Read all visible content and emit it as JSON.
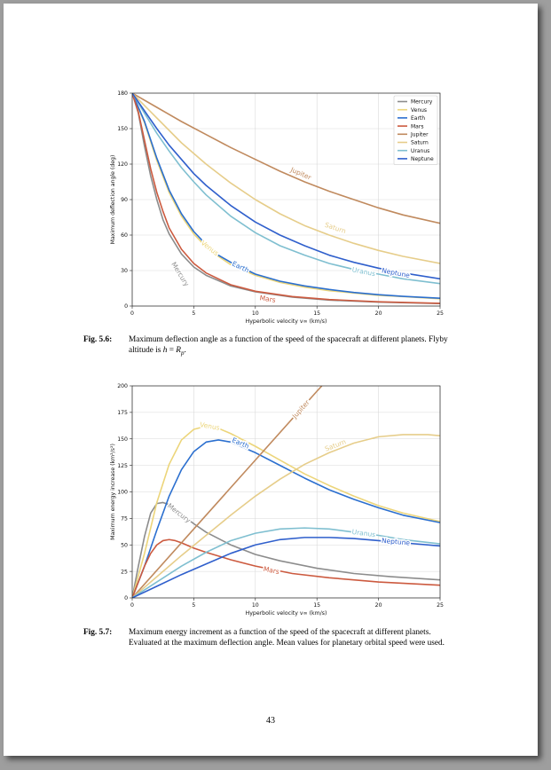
{
  "page_number": "43",
  "figures": [
    {
      "label": "Fig. 5.6:",
      "caption_lines": [
        "Maximum deflection angle as a function of the speed of the spacecraft at different planets.",
        "Flyby altitude is h = R_p."
      ],
      "caption_html": "Maximum deflection angle as a function of the speed of the spacecraft at different planets. Flyby altitude is <i>h</i> = <i>R</i><sub style=\"font-size:7px\"><i>p</i></sub>."
    },
    {
      "label": "Fig. 5.7:",
      "caption_html": "Maximum energy increment as a function of the speed of the spacecraft at different planets. Evaluated at the maximum deflection angle. Mean values for planetary orbital speed were used."
    }
  ],
  "colors": {
    "Mercury": "#8c8c8c",
    "Venus": "#ecd57a",
    "Earth": "#2b6fcf",
    "Mars": "#cc5a3f",
    "Jupiter": "#c08a5e",
    "Saturn": "#e6cd8a",
    "Uranus": "#7fbfd0",
    "Neptune": "#2f5fcc"
  },
  "chart_data": [
    {
      "type": "line",
      "xlabel": "Hyperbolic velocity v∞ (km/s)",
      "ylabel": "Maximum deflection angle (deg)",
      "xlim": [
        0,
        25
      ],
      "ylim": [
        0,
        180
      ],
      "xticks": [
        0,
        5,
        10,
        15,
        20,
        25
      ],
      "yticks": [
        0,
        30,
        60,
        90,
        120,
        150,
        180
      ],
      "grid": true,
      "legend": "top-right",
      "series": [
        {
          "name": "Mercury",
          "x": [
            0,
            0.5,
            1,
            1.5,
            2,
            2.5,
            3,
            4,
            5,
            6,
            8,
            10,
            13,
            16,
            20,
            25
          ],
          "values": [
            180,
            163,
            135,
            110,
            90,
            73,
            61,
            44,
            33,
            26,
            17,
            12,
            7.5,
            5,
            3.3,
            2.1
          ],
          "label_at": [
            3.9,
            27
          ]
        },
        {
          "name": "Venus",
          "x": [
            0,
            1,
            2,
            3,
            4,
            5,
            6,
            7,
            8,
            10,
            12,
            14,
            16,
            18,
            20,
            22,
            25
          ],
          "values": [
            180,
            155,
            123,
            96,
            76,
            61,
            50,
            42,
            35,
            26,
            20,
            16,
            13,
            11,
            9,
            8,
            6.1
          ],
          "label_at": [
            6.3,
            49
          ]
        },
        {
          "name": "Earth",
          "x": [
            0,
            1,
            2,
            3,
            4,
            5,
            6,
            7,
            8,
            10,
            12,
            14,
            16,
            18,
            20,
            22,
            25
          ],
          "values": [
            180,
            156,
            125,
            98,
            78,
            63,
            52,
            43,
            37,
            27,
            21,
            17,
            14,
            11.5,
            9.6,
            8.2,
            6.6
          ],
          "label_at": [
            8.8,
            33
          ]
        },
        {
          "name": "Mars",
          "x": [
            0,
            0.5,
            1,
            1.5,
            2,
            2.5,
            3,
            4,
            5,
            6,
            8,
            10,
            13,
            16,
            20,
            25
          ],
          "values": [
            180,
            164,
            140,
            116,
            96,
            80,
            66,
            48,
            36,
            28,
            18,
            12.5,
            8,
            5.5,
            3.6,
            2.3
          ],
          "label_at": [
            11,
            6
          ]
        },
        {
          "name": "Jupiter",
          "x": [
            0,
            2,
            4,
            6,
            8,
            10,
            12,
            14,
            16,
            18,
            20,
            22,
            25
          ],
          "values": [
            180,
            168,
            156,
            145,
            134,
            124,
            114,
            105,
            97,
            90,
            83,
            77,
            70
          ],
          "label_at": [
            13.7,
            112
          ]
        },
        {
          "name": "Saturn",
          "x": [
            0,
            2,
            4,
            6,
            8,
            10,
            12,
            14,
            16,
            18,
            20,
            22,
            25
          ],
          "values": [
            180,
            159,
            138,
            120,
            104,
            90,
            78,
            68,
            60,
            53,
            47,
            42,
            36
          ],
          "label_at": [
            16.5,
            66
          ]
        },
        {
          "name": "Uranus",
          "x": [
            0,
            1,
            2,
            3,
            4,
            5,
            6,
            8,
            10,
            12,
            14,
            16,
            18,
            20,
            22,
            25
          ],
          "values": [
            180,
            163,
            146,
            131,
            117,
            105,
            94,
            76,
            62,
            51,
            43,
            36,
            31,
            27,
            23,
            19
          ],
          "label_at": [
            18.8,
            29
          ]
        },
        {
          "name": "Neptune",
          "x": [
            0,
            1,
            2,
            3,
            4,
            5,
            6,
            8,
            10,
            12,
            14,
            16,
            18,
            20,
            22,
            25
          ],
          "values": [
            180,
            165,
            150,
            136,
            124,
            112,
            102,
            85,
            71,
            60,
            51,
            43,
            37,
            32,
            28,
            23
          ],
          "label_at": [
            21.4,
            28
          ]
        }
      ]
    },
    {
      "type": "line",
      "xlabel": "Hyperbolic velocity v∞ (km/s)",
      "ylabel": "Maximum energy increase (km²/s²)",
      "xlim": [
        0,
        25
      ],
      "ylim": [
        0,
        200
      ],
      "xticks": [
        0,
        5,
        10,
        15,
        20,
        25
      ],
      "yticks": [
        0,
        25,
        50,
        75,
        100,
        125,
        150,
        175,
        200
      ],
      "grid": true,
      "series": [
        {
          "name": "Mercury",
          "x": [
            0,
            0.5,
            1,
            1.5,
            2,
            2.5,
            3,
            4,
            5,
            6,
            8,
            10,
            12,
            15,
            18,
            21,
            25
          ],
          "values": [
            0,
            30,
            58,
            80,
            89,
            90,
            88,
            79,
            70,
            62,
            50,
            41,
            35,
            28,
            23,
            20,
            17
          ],
          "label_at": [
            3.8,
            80
          ]
        },
        {
          "name": "Venus",
          "x": [
            0,
            1,
            2,
            3,
            4,
            5,
            6,
            7,
            8,
            10,
            12,
            14,
            16,
            18,
            20,
            22,
            25
          ],
          "values": [
            0,
            42,
            90,
            126,
            149,
            159,
            162,
            160,
            155,
            143,
            130,
            117,
            106,
            96,
            87,
            80,
            72
          ],
          "label_at": [
            6.3,
            162
          ]
        },
        {
          "name": "Earth",
          "x": [
            0,
            1,
            2,
            3,
            4,
            5,
            6,
            7,
            8,
            10,
            12,
            14,
            16,
            18,
            20,
            22,
            25
          ],
          "values": [
            0,
            30,
            64,
            96,
            121,
            138,
            147,
            149,
            147,
            137,
            125,
            113,
            102,
            93,
            85,
            78,
            71
          ],
          "label_at": [
            8.8,
            146
          ]
        },
        {
          "name": "Mars",
          "x": [
            0,
            0.5,
            1,
            1.5,
            2,
            2.5,
            3,
            3.5,
            4,
            5,
            6,
            8,
            10,
            13,
            16,
            20,
            25
          ],
          "values": [
            0,
            15,
            30,
            42,
            50,
            54,
            55,
            54,
            52,
            47,
            43,
            36,
            30,
            23,
            19,
            15,
            12
          ],
          "label_at": [
            11.3,
            26
          ]
        },
        {
          "name": "Jupiter",
          "x": [
            0,
            5,
            10,
            15,
            15.4
          ],
          "values": [
            0,
            65,
            130,
            195,
            200
          ],
          "label_at": [
            13.7,
            178
          ]
        },
        {
          "name": "Saturn",
          "x": [
            0,
            2,
            4,
            6,
            8,
            10,
            12,
            14,
            16,
            18,
            20,
            22,
            24,
            25
          ],
          "values": [
            0,
            20,
            40,
            59,
            78,
            96,
            112,
            126,
            137,
            146,
            152,
            154,
            154,
            153
          ],
          "label_at": [
            16.5,
            144
          ]
        },
        {
          "name": "Uranus",
          "x": [
            0,
            2,
            4,
            6,
            8,
            10,
            12,
            14,
            16,
            18,
            20,
            22,
            25
          ],
          "values": [
            0,
            15,
            30,
            43,
            54,
            61,
            65,
            66,
            65,
            62,
            59,
            55,
            51
          ],
          "label_at": [
            18.8,
            61
          ]
        },
        {
          "name": "Neptune",
          "x": [
            0,
            2,
            4,
            6,
            8,
            10,
            12,
            14,
            16,
            18,
            20,
            22,
            25
          ],
          "values": [
            0,
            11,
            22,
            32,
            42,
            50,
            55,
            57,
            57,
            56,
            54,
            52,
            49
          ],
          "label_at": [
            21.4,
            53
          ]
        }
      ]
    }
  ]
}
